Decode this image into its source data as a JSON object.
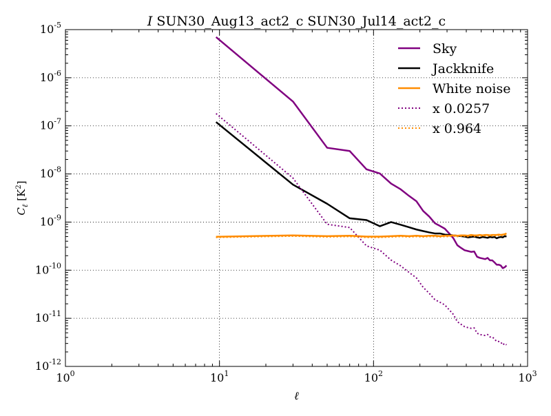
{
  "chart_data": {
    "type": "line",
    "title_italic": "I",
    "title_rest": " SUN30_Aug13_act2_c SUN30_Jul14_act2_c",
    "xlabel": "ℓ",
    "ylabel_main": "C",
    "ylabel_sub": "ℓ",
    "ylabel_unit_open": " [K",
    "ylabel_unit_exp": "2",
    "ylabel_unit_close": "]",
    "xscale": "log",
    "yscale": "log",
    "xlim": [
      1,
      1000
    ],
    "ylim": [
      1e-12,
      1e-05
    ],
    "grid": true,
    "legend_position": "top-right",
    "x_ticks": [
      {
        "value": 1,
        "base": "10",
        "exp": "0"
      },
      {
        "value": 10,
        "base": "10",
        "exp": "1"
      },
      {
        "value": 100,
        "base": "10",
        "exp": "2"
      },
      {
        "value": 1000,
        "base": "10",
        "exp": "3"
      }
    ],
    "y_ticks": [
      {
        "value": 1e-12,
        "base": "10",
        "exp": "-12"
      },
      {
        "value": 1e-11,
        "base": "10",
        "exp": "-11"
      },
      {
        "value": 1e-10,
        "base": "10",
        "exp": "-10"
      },
      {
        "value": 1e-09,
        "base": "10",
        "exp": "-9"
      },
      {
        "value": 1e-08,
        "base": "10",
        "exp": "-8"
      },
      {
        "value": 1e-07,
        "base": "10",
        "exp": "-7"
      },
      {
        "value": 1e-06,
        "base": "10",
        "exp": "-6"
      },
      {
        "value": 1e-05,
        "base": "10",
        "exp": "-5"
      }
    ],
    "series": [
      {
        "name": "Sky",
        "color": "#800080",
        "style": "solid",
        "x": [
          9.5,
          30,
          50,
          70,
          90,
          110,
          130,
          150,
          170,
          190,
          210,
          230,
          250,
          270,
          290,
          310,
          330,
          350,
          370,
          390,
          410,
          430,
          450,
          470,
          490,
          510,
          530,
          550,
          570,
          590,
          610,
          630,
          650,
          670,
          690,
          710,
          730
        ],
        "y": [
          7e-06,
          3.2e-07,
          3.5e-08,
          3e-08,
          1.25e-08,
          1.02e-08,
          6.3e-09,
          4.8e-09,
          3.5e-09,
          2.7e-09,
          1.7e-09,
          1.3e-09,
          9.5e-10,
          8.3e-10,
          7.3e-10,
          5.8e-10,
          4.6e-10,
          3.3e-10,
          2.9e-10,
          2.6e-10,
          2.5e-10,
          2.4e-10,
          2.45e-10,
          1.9e-10,
          1.8e-10,
          1.75e-10,
          1.7e-10,
          1.8e-10,
          1.6e-10,
          1.6e-10,
          1.45e-10,
          1.3e-10,
          1.3e-10,
          1.25e-10,
          1.1e-10,
          1.15e-10,
          1.25e-10
        ]
      },
      {
        "name": "Jackknife",
        "color": "#000000",
        "style": "solid",
        "x": [
          9.5,
          30,
          50,
          70,
          90,
          110,
          130,
          150,
          170,
          190,
          210,
          230,
          250,
          270,
          290,
          310,
          330,
          350,
          370,
          390,
          410,
          430,
          450,
          470,
          490,
          510,
          530,
          550,
          570,
          590,
          610,
          630,
          650,
          670,
          690,
          710,
          730
        ],
        "y": [
          1.2e-07,
          6e-09,
          2.4e-09,
          1.2e-09,
          1.1e-09,
          8.2e-10,
          1e-09,
          8.8e-10,
          7.8e-10,
          7e-10,
          6.5e-10,
          6.1e-10,
          5.8e-10,
          5.8e-10,
          5.5e-10,
          5.4e-10,
          5.3e-10,
          5.2e-10,
          5.1e-10,
          5e-10,
          4.8e-10,
          4.9e-10,
          5e-10,
          4.8e-10,
          4.7e-10,
          4.9e-10,
          4.8e-10,
          4.7e-10,
          4.9e-10,
          4.8e-10,
          4.9e-10,
          4.6e-10,
          4.8e-10,
          4.9e-10,
          4.8e-10,
          5.1e-10,
          5e-10
        ]
      },
      {
        "name": "White noise",
        "color": "#ff8c00",
        "style": "solid",
        "x": [
          9.5,
          30,
          50,
          70,
          90,
          110,
          130,
          150,
          170,
          190,
          210,
          230,
          250,
          270,
          290,
          310,
          330,
          350,
          370,
          390,
          410,
          430,
          450,
          470,
          490,
          510,
          530,
          550,
          570,
          590,
          610,
          630,
          650,
          670,
          690,
          710,
          730
        ],
        "y": [
          4.95e-10,
          5.3e-10,
          5.1e-10,
          5.2e-10,
          5e-10,
          5e-10,
          5.1e-10,
          5.2e-10,
          5.1e-10,
          5.2e-10,
          5.1e-10,
          5.2e-10,
          5.2e-10,
          5.1e-10,
          5.2e-10,
          5.2e-10,
          5.3e-10,
          5.2e-10,
          5.3e-10,
          5.3e-10,
          5.2e-10,
          5.4e-10,
          5.3e-10,
          5.3e-10,
          5.4e-10,
          5.3e-10,
          5.4e-10,
          5.4e-10,
          5.3e-10,
          5.4e-10,
          5.4e-10,
          5.4e-10,
          5.5e-10,
          5.4e-10,
          5.5e-10,
          5.6e-10,
          5.8e-10
        ]
      },
      {
        "name": "x 0.0257",
        "color": "#800080",
        "style": "dotted",
        "x": [
          9.5,
          30,
          50,
          70,
          90,
          110,
          130,
          150,
          170,
          190,
          210,
          230,
          250,
          270,
          290,
          310,
          330,
          350,
          370,
          390,
          410,
          430,
          450,
          470,
          490,
          510,
          530,
          550,
          570,
          590,
          610,
          630,
          650,
          670,
          690,
          710,
          730
        ],
        "y": [
          1.8e-07,
          8.2e-09,
          9e-10,
          7.7e-10,
          3.2e-10,
          2.6e-10,
          1.62e-10,
          1.23e-10,
          9e-11,
          6.9e-11,
          4.4e-11,
          3.3e-11,
          2.45e-11,
          2.15e-11,
          1.9e-11,
          1.5e-11,
          1.2e-11,
          8.5e-12,
          7.5e-12,
          6.7e-12,
          6.4e-12,
          6.2e-12,
          6.3e-12,
          4.9e-12,
          4.6e-12,
          4.5e-12,
          4.4e-12,
          4.6e-12,
          4.1e-12,
          4.1e-12,
          3.7e-12,
          3.3e-12,
          3.3e-12,
          3.2e-12,
          2.8e-12,
          3e-12,
          2.8e-12
        ]
      },
      {
        "name": "x 0.964",
        "color": "#ff8c00",
        "style": "dotted",
        "x": [
          9.5,
          30,
          50,
          70,
          90,
          110,
          130,
          150,
          170,
          190,
          210,
          230,
          250,
          270,
          290,
          310,
          330,
          350,
          370,
          390,
          410,
          430,
          450,
          470,
          490,
          510,
          530,
          550,
          570,
          590,
          610,
          630,
          650,
          670,
          690,
          710,
          730
        ],
        "y": [
          4.8e-10,
          5.1e-10,
          4.9e-10,
          5e-10,
          4.8e-10,
          4.8e-10,
          4.9e-10,
          5e-10,
          4.9e-10,
          5e-10,
          4.9e-10,
          5e-10,
          5e-10,
          4.9e-10,
          5e-10,
          5e-10,
          5.1e-10,
          5e-10,
          5.1e-10,
          5.1e-10,
          5e-10,
          5.2e-10,
          5.1e-10,
          5.1e-10,
          5.2e-10,
          5.1e-10,
          5.2e-10,
          5.2e-10,
          5.1e-10,
          5.2e-10,
          5.2e-10,
          5.2e-10,
          5.3e-10,
          5.2e-10,
          5.3e-10,
          5.4e-10,
          5.6e-10
        ]
      }
    ]
  }
}
